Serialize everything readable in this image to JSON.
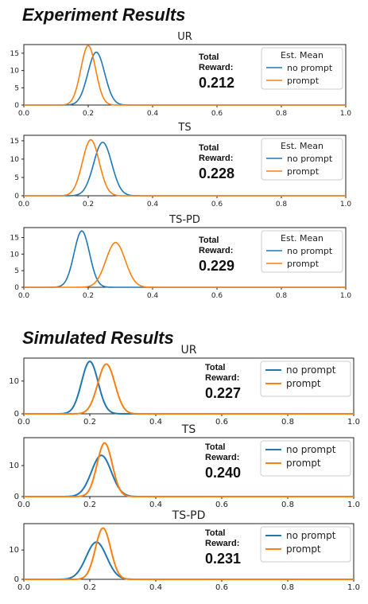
{
  "sections": [
    {
      "title": "Experiment Results"
    },
    {
      "title": "Simulated Results"
    }
  ],
  "colors": {
    "no_prompt": "#1f77b4",
    "prompt": "#ff7f0e",
    "axis": "#222222"
  },
  "chart_data": [
    {
      "type": "line",
      "title": "UR",
      "section": "Experiment Results",
      "legend_title": "Est. Mean",
      "legend_position": "top-right",
      "reward_label": "Total Reward:",
      "reward_value": "0.212",
      "xlim": [
        0,
        1
      ],
      "ylim": [
        0,
        17.5
      ],
      "xticks": [
        "0.0",
        "0.2",
        "0.4",
        "0.6",
        "0.8",
        "1.0"
      ],
      "yticks": [
        "0",
        "5",
        "10",
        "15"
      ],
      "series": [
        {
          "name": "no prompt",
          "color": "#1f77b4",
          "distribution": {
            "mean": 0.225,
            "sd": 0.026
          },
          "peak": 15.3
        },
        {
          "name": "prompt",
          "color": "#ff7f0e",
          "distribution": {
            "mean": 0.2,
            "sd": 0.023
          },
          "peak": 17.2
        }
      ]
    },
    {
      "type": "line",
      "title": "TS",
      "section": "Experiment Results",
      "legend_title": "Est. Mean",
      "legend_position": "top-right",
      "reward_label": "Total Reward:",
      "reward_value": "0.228",
      "xlim": [
        0,
        1
      ],
      "ylim": [
        0,
        16.5
      ],
      "xticks": [
        "0.0",
        "0.2",
        "0.4",
        "0.6",
        "0.8",
        "1.0"
      ],
      "yticks": [
        "0",
        "5",
        "10",
        "15"
      ],
      "series": [
        {
          "name": "no prompt",
          "color": "#1f77b4",
          "distribution": {
            "mean": 0.245,
            "sd": 0.028
          },
          "peak": 14.6
        },
        {
          "name": "prompt",
          "color": "#ff7f0e",
          "distribution": {
            "mean": 0.208,
            "sd": 0.026
          },
          "peak": 15.3
        }
      ]
    },
    {
      "type": "line",
      "title": "TS-PD",
      "section": "Experiment Results",
      "legend_title": "Est. Mean",
      "legend_position": "top-right",
      "reward_label": "Total Reward:",
      "reward_value": "0.229",
      "xlim": [
        0,
        1
      ],
      "ylim": [
        0,
        18
      ],
      "xticks": [
        "0.0",
        "0.2",
        "0.4",
        "0.6",
        "0.8",
        "1.0"
      ],
      "yticks": [
        "0",
        "5",
        "10",
        "15"
      ],
      "series": [
        {
          "name": "no prompt",
          "color": "#1f77b4",
          "distribution": {
            "mean": 0.18,
            "sd": 0.024
          },
          "peak": 17.0
        },
        {
          "name": "prompt",
          "color": "#ff7f0e",
          "distribution": {
            "mean": 0.285,
            "sd": 0.03
          },
          "peak": 13.5
        }
      ]
    },
    {
      "type": "line",
      "title": "UR",
      "section": "Simulated Results",
      "legend_title": "",
      "legend_position": "top-right",
      "reward_label": "Total Reward:",
      "reward_value": "0.227",
      "xlim": [
        0,
        1
      ],
      "ylim": [
        0,
        17
      ],
      "xticks": [
        "0.0",
        "0.2",
        "0.4",
        "0.6",
        "0.8",
        "1.0"
      ],
      "yticks": [
        "0",
        "10"
      ],
      "series": [
        {
          "name": "no prompt",
          "color": "#1f77b4",
          "distribution": {
            "mean": 0.2,
            "sd": 0.025
          },
          "peak": 16.0
        },
        {
          "name": "prompt",
          "color": "#ff7f0e",
          "distribution": {
            "mean": 0.25,
            "sd": 0.026
          },
          "peak": 15.2
        }
      ]
    },
    {
      "type": "line",
      "title": "TS",
      "section": "Simulated Results",
      "legend_title": "",
      "legend_position": "top-right",
      "reward_label": "Total Reward:",
      "reward_value": "0.240",
      "xlim": [
        0,
        1
      ],
      "ylim": [
        0,
        19
      ],
      "xticks": [
        "0.0",
        "0.2",
        "0.4",
        "0.6",
        "0.8",
        "1.0"
      ],
      "yticks": [
        "0",
        "10"
      ],
      "series": [
        {
          "name": "no prompt",
          "color": "#1f77b4",
          "distribution": {
            "mean": 0.235,
            "sd": 0.03
          },
          "peak": 13.3
        },
        {
          "name": "prompt",
          "color": "#ff7f0e",
          "distribution": {
            "mean": 0.245,
            "sd": 0.023
          },
          "peak": 17.3
        }
      ]
    },
    {
      "type": "line",
      "title": "TS-PD",
      "section": "Simulated Results",
      "legend_title": "",
      "legend_position": "top-right",
      "reward_label": "Total Reward:",
      "reward_value": "0.231",
      "xlim": [
        0,
        1
      ],
      "ylim": [
        0,
        19
      ],
      "xticks": [
        "0.0",
        "0.2",
        "0.4",
        "0.6",
        "0.8",
        "1.0"
      ],
      "yticks": [
        "0",
        "10"
      ],
      "series": [
        {
          "name": "no prompt",
          "color": "#1f77b4",
          "distribution": {
            "mean": 0.22,
            "sd": 0.031
          },
          "peak": 12.7
        },
        {
          "name": "prompt",
          "color": "#ff7f0e",
          "distribution": {
            "mean": 0.24,
            "sd": 0.023
          },
          "peak": 17.5
        }
      ]
    }
  ]
}
